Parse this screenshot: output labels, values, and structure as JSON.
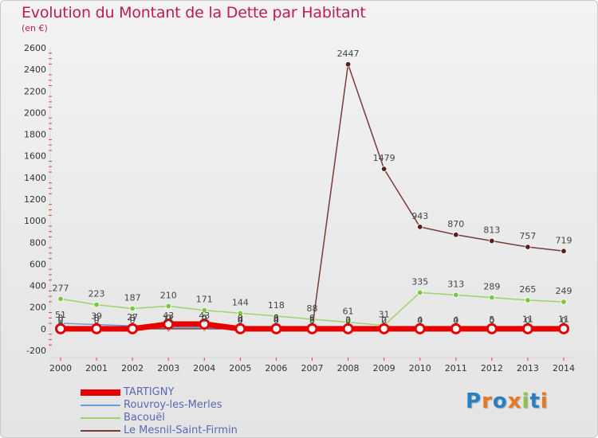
{
  "title": "Evolution du Montant de la Dette par Habitant",
  "unit": "(en €)",
  "logo": {
    "letters": [
      "P",
      "r",
      "o",
      "x",
      "i",
      "t",
      "i"
    ],
    "colors": [
      "#2a7fc0",
      "#e87722",
      "#2a7fc0",
      "#e87722",
      "#8bc34a",
      "#2a7fc0",
      "#e87722"
    ]
  },
  "chart_data": {
    "type": "line",
    "title": "Evolution du Montant de la Dette par Habitant",
    "ylabel": "(en €)",
    "xlabel": "",
    "x": [
      "2000",
      "2001",
      "2002",
      "2003",
      "2004",
      "2005",
      "2006",
      "2007",
      "2008",
      "2009",
      "2010",
      "2011",
      "2012",
      "2013",
      "2014"
    ],
    "ylim": [
      -200,
      2600
    ],
    "yticks": [
      -200,
      0,
      200,
      400,
      600,
      800,
      1000,
      1200,
      1400,
      1600,
      1800,
      2000,
      2200,
      2400,
      2600
    ],
    "grid": false,
    "legend": "bottom-left",
    "series": [
      {
        "name": "TARTIGNY",
        "color": "#e60000",
        "markerColor": "#e60000",
        "values": [
          0,
          0,
          0,
          43,
          43,
          0,
          0,
          0,
          0,
          0,
          0,
          0,
          0,
          0,
          0
        ],
        "labels": [
          "0",
          "0",
          "0",
          "43",
          "43",
          "0",
          "0",
          "0",
          "0",
          "0",
          "0",
          "0",
          "0",
          "0",
          "0"
        ]
      },
      {
        "name": "Rouvroy-les-Merles",
        "color": "#6a9ed3",
        "markerColor": "#3a85cc",
        "values": [
          51,
          39,
          27,
          11,
          9,
          4,
          4,
          3,
          3,
          2,
          4,
          4,
          5,
          11,
          11
        ],
        "labels": [
          "51",
          "39",
          "27",
          "11",
          "9",
          "4",
          "4",
          "3",
          "3",
          "2",
          "4",
          "4",
          "5",
          "11",
          "11"
        ]
      },
      {
        "name": "Bacouël",
        "color": "#9bd46a",
        "markerColor": "#7cc63f",
        "values": [
          277,
          223,
          187,
          210,
          171,
          144,
          118,
          88,
          61,
          31,
          335,
          313,
          289,
          265,
          249
        ],
        "labels": [
          "277",
          "223",
          "187",
          "210",
          "171",
          "144",
          "118",
          "88",
          "61",
          "31",
          "335",
          "313",
          "289",
          "265",
          "249"
        ]
      },
      {
        "name": "Le Mesnil-Saint-Firmin",
        "color": "#7a3a3a",
        "markerColor": "#5a1e1e",
        "values": [
          0,
          0,
          0,
          0,
          0,
          0,
          0,
          0,
          2447,
          1479,
          943,
          870,
          813,
          757,
          719
        ],
        "labels": [
          "0",
          "0",
          "0",
          "0",
          "0",
          "0",
          "0",
          "0",
          "2447",
          "1479",
          "943",
          "870",
          "813",
          "757",
          "719"
        ]
      }
    ]
  }
}
